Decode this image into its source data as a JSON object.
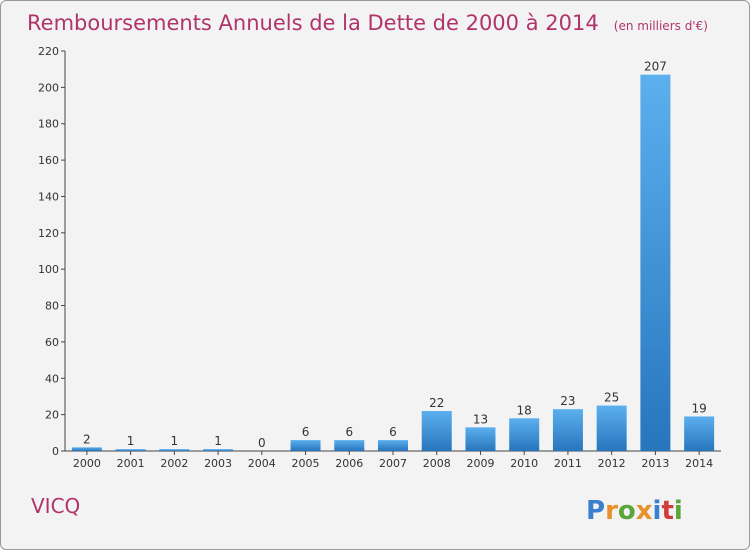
{
  "chart_data": {
    "type": "bar",
    "title": "Remboursements Annuels de la Dette de 2000 à 2014",
    "subtitle": "(en milliers d'€)",
    "categories": [
      "2000",
      "2001",
      "2002",
      "2003",
      "2004",
      "2005",
      "2006",
      "2007",
      "2008",
      "2009",
      "2010",
      "2011",
      "2012",
      "2013",
      "2014"
    ],
    "values": [
      2,
      1,
      1,
      1,
      0,
      6,
      6,
      6,
      22,
      13,
      18,
      23,
      25,
      207,
      19
    ],
    "ylim": [
      0,
      220
    ],
    "yticks": [
      0,
      20,
      40,
      60,
      80,
      100,
      120,
      140,
      160,
      180,
      200,
      220
    ],
    "grid": false,
    "bar_color": "#3d8fd9"
  },
  "commune": "VICQ",
  "brand": {
    "letters": [
      "P",
      "r",
      "o",
      "x",
      "i",
      "t",
      "i"
    ],
    "colors": [
      "#3a7fd0",
      "#e8902a",
      "#5aa63b",
      "#e8902a",
      "#3a7fd0",
      "#d23b3b",
      "#5aa63b"
    ],
    "icon": "proxiti-logo"
  }
}
